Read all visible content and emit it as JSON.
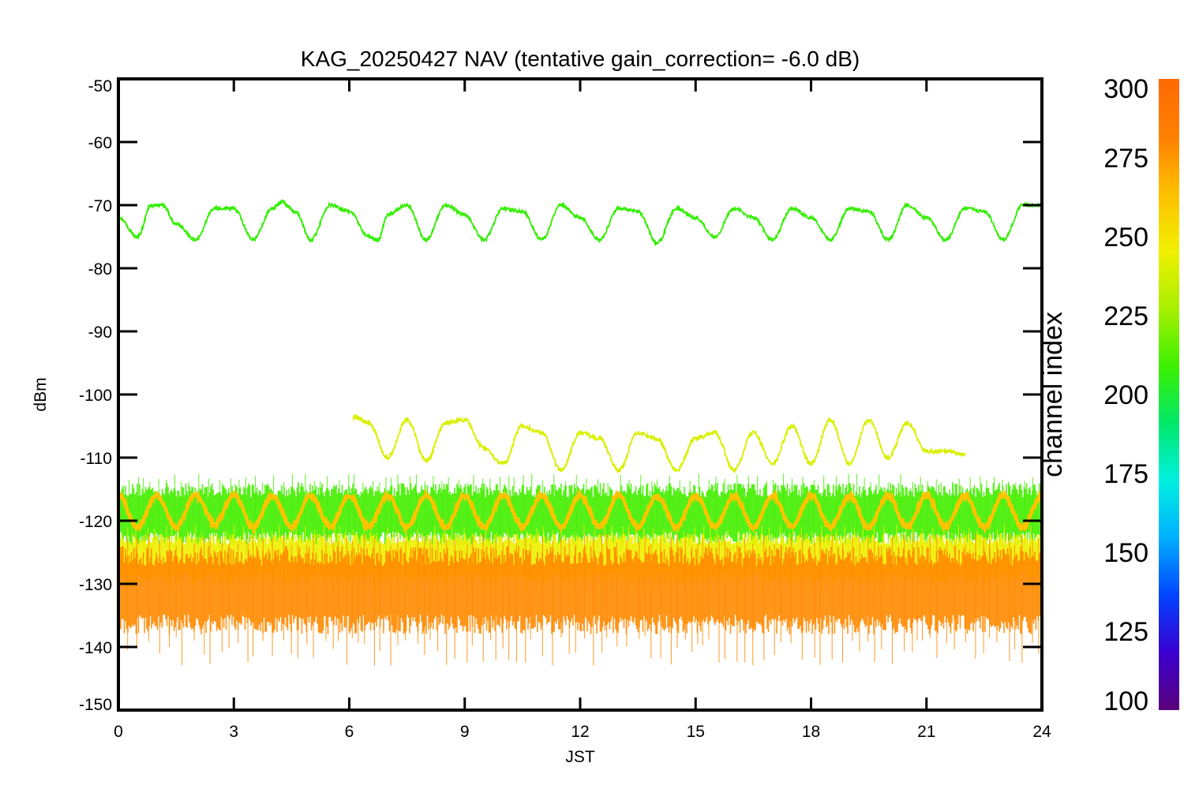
{
  "chart_data": {
    "type": "line",
    "title": "KAG_20250427 NAV (tentative gain_correction= -6.0 dB)",
    "xlabel": "JST",
    "ylabel": "dBm",
    "xlim": [
      0,
      24
    ],
    "ylim": [
      -150,
      -50
    ],
    "x_ticks": [
      0,
      3,
      6,
      9,
      12,
      15,
      18,
      21,
      24
    ],
    "x_tick_labels": [
      "0",
      "3",
      "6",
      "9",
      "12",
      "15",
      "18",
      "21",
      "24"
    ],
    "y_ticks": [
      -50,
      -60,
      -70,
      -80,
      -90,
      -100,
      -110,
      -120,
      -130,
      -140,
      -150
    ],
    "y_tick_labels": [
      "-50",
      "-60",
      "-70",
      "-80",
      "-90",
      "-100",
      "-110",
      "-120",
      "-130",
      "-140",
      "-150"
    ],
    "grid": false,
    "colorbar": {
      "label": "channel index",
      "range": [
        100,
        300
      ],
      "ticks": [
        300,
        275,
        250,
        225,
        200,
        175,
        150,
        125,
        100
      ],
      "tick_labels": [
        "300",
        "275",
        "250",
        "225",
        "200",
        "175",
        "150",
        "125",
        "100"
      ],
      "colors": [
        "#5a007a",
        "#3a00d0",
        "#0044ff",
        "#00b0ff",
        "#00f0e0",
        "#00e86a",
        "#3cf000",
        "#a8f000",
        "#f0f000",
        "#ffc000",
        "#ff8000",
        "#ff6a00"
      ]
    },
    "series": [
      {
        "channel_index": 240,
        "color": "#33ee00",
        "style": "line",
        "x": [
          0,
          0.5,
          0.85,
          1.15,
          1.5,
          2.0,
          2.5,
          3.0,
          3.5,
          4.0,
          4.25,
          4.6,
          5.0,
          5.5,
          6.0,
          6.5,
          6.75,
          7.0,
          7.5,
          8.0,
          8.5,
          9.0,
          9.5,
          10.0,
          10.5,
          11.0,
          11.5,
          12.0,
          12.5,
          13.0,
          13.5,
          14.0,
          14.5,
          15.0,
          15.5,
          16.0,
          16.5,
          17.0,
          17.5,
          18.0,
          18.5,
          19.0,
          19.5,
          20.0,
          20.5,
          21.0,
          21.5,
          22.0,
          22.5,
          23.0,
          23.5,
          24.0
        ],
        "y": [
          -72,
          -75,
          -70,
          -70,
          -73,
          -75.5,
          -70.5,
          -70.5,
          -75.5,
          -70.5,
          -69.5,
          -71,
          -75.5,
          -70,
          -71,
          -75,
          -75.5,
          -71.5,
          -70,
          -75.5,
          -70,
          -71.5,
          -75.5,
          -70.5,
          -71,
          -75.5,
          -70,
          -72,
          -75.5,
          -70.5,
          -71,
          -76,
          -70.5,
          -72,
          -75,
          -70.5,
          -72,
          -75.5,
          -70.5,
          -72,
          -75.5,
          -70.5,
          -71,
          -75.5,
          -70,
          -72,
          -75.5,
          -70.5,
          -71,
          -75.5,
          -70,
          -70
        ]
      },
      {
        "channel_index": 262,
        "color": "#d8f000",
        "style": "line",
        "x": [
          6.1,
          6.5,
          7.0,
          7.5,
          8.0,
          8.5,
          9.0,
          9.5,
          10.0,
          10.5,
          11.0,
          11.5,
          12.0,
          12.5,
          13.0,
          13.5,
          14.0,
          14.5,
          15.0,
          15.5,
          16.0,
          16.5,
          17.0,
          17.5,
          18.0,
          18.5,
          19.0,
          19.5,
          20.0,
          20.5,
          21.0,
          21.5,
          22.0
        ],
        "y": [
          -103.5,
          -104.5,
          -110,
          -104,
          -110.5,
          -104.5,
          -104,
          -108.5,
          -111,
          -105,
          -106,
          -112,
          -106,
          -107,
          -112,
          -106,
          -107,
          -112,
          -107,
          -106,
          -112,
          -106,
          -111,
          -105,
          -111,
          -104,
          -111,
          -104,
          -110,
          -104.5,
          -109,
          -109,
          -109.5
        ]
      },
      {
        "channel_index": 282,
        "color": "#ffc400",
        "style": "line",
        "x": [
          0,
          0.5,
          1.0,
          1.5,
          2.0,
          2.5,
          3.0,
          3.5,
          4.0,
          4.5,
          5.0,
          5.5,
          6.0,
          6.5,
          7.0,
          7.5,
          8.0,
          8.5,
          9.0,
          9.5,
          10.0,
          10.5,
          11.0,
          11.5,
          12.0,
          12.5,
          13.0,
          13.5,
          14.0,
          14.5,
          15.0,
          15.5,
          16.0,
          16.5,
          17.0,
          17.5,
          18.0,
          18.5,
          19.0,
          19.5,
          20.0,
          20.5,
          21.0,
          21.5,
          22.0,
          22.5,
          23.0,
          23.5,
          24.0
        ],
        "y": [
          -116,
          -121,
          -116,
          -121,
          -116,
          -120.5,
          -116,
          -121,
          -116,
          -121,
          -116,
          -121,
          -116,
          -121,
          -116,
          -121,
          -116,
          -121,
          -116,
          -121,
          -116,
          -121,
          -116,
          -121,
          -116,
          -121,
          -116,
          -121,
          -116,
          -121,
          -116,
          -121,
          -116,
          -121,
          -116,
          -121,
          -116,
          -121,
          -116,
          -121,
          -116,
          -121,
          -116,
          -121,
          -116,
          -121,
          -116,
          -121,
          -116
        ]
      }
    ],
    "bands": [
      {
        "channel_range": [
          240,
          250
        ],
        "color": "#44ee00",
        "y_range": [
          -124,
          -114
        ]
      },
      {
        "channel_range": [
          262,
          270
        ],
        "color": "#eef000",
        "y_range": [
          -130,
          -122
        ]
      },
      {
        "channel_range": [
          285,
          300
        ],
        "color": "#ff8a00",
        "y_range": [
          -138,
          -124
        ]
      }
    ]
  }
}
